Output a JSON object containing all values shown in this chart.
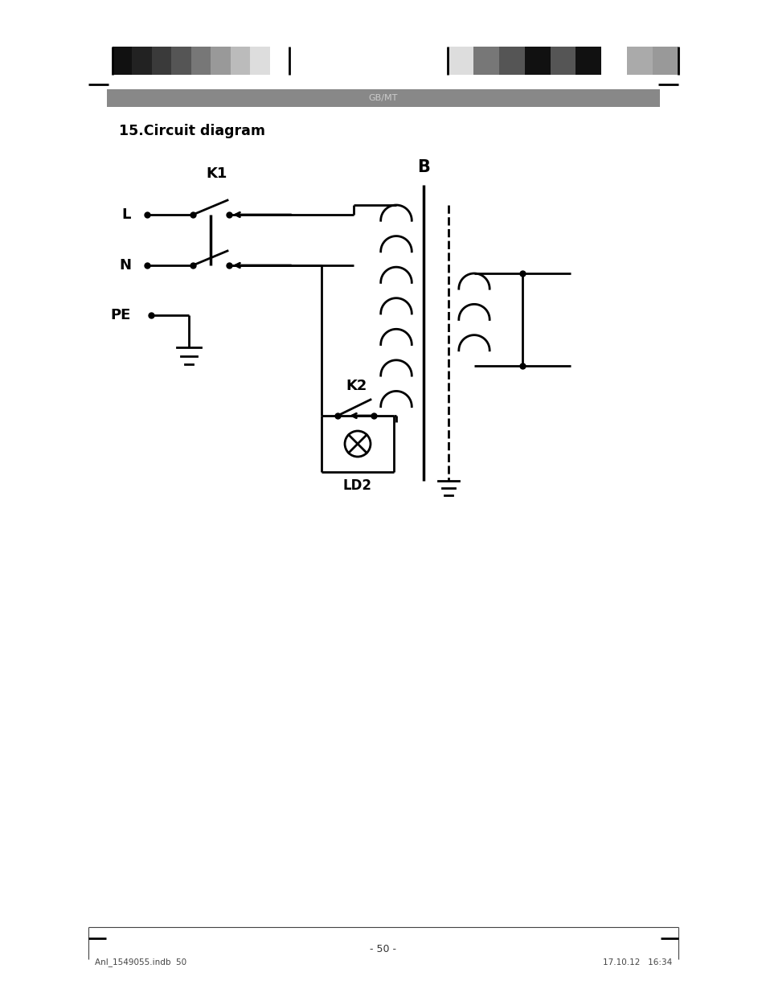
{
  "title": "15.Circuit diagram",
  "header_text": "GB/MT",
  "footer_left": "Anl_1549055.indb  50",
  "footer_right": "17.10.12   16:34",
  "page_number": "- 50 -",
  "bg_color": "#ffffff",
  "line_color": "#000000",
  "left_strip_colors": [
    "#111111",
    "#222222",
    "#3a3a3a",
    "#555555",
    "#777777",
    "#999999",
    "#bbbbbb",
    "#dddddd",
    "#ffffff"
  ],
  "right_strip_colors": [
    "#dddddd",
    "#777777",
    "#555555",
    "#111111",
    "#555555",
    "#111111",
    "#ffffff",
    "#aaaaaa",
    "#999999"
  ],
  "header_bar_color": "#888888",
  "header_text_color": "#cccccc"
}
